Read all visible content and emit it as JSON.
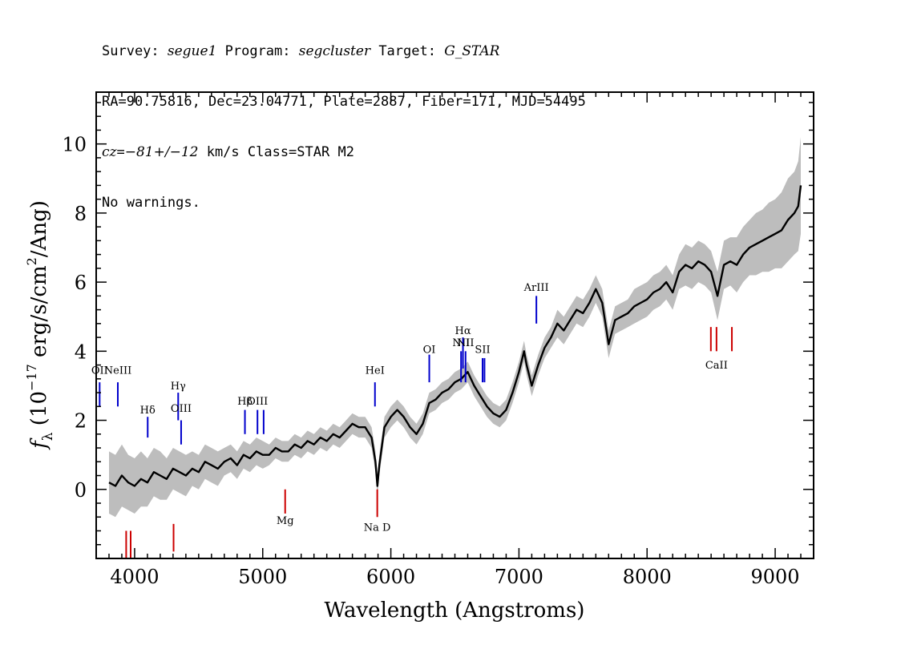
{
  "header": {
    "line1": {
      "p1": "Survey: ",
      "survey": "segue1",
      "p2": " Program: ",
      "program": "segcluster",
      "p3": " Target: ",
      "target": "G_STAR"
    },
    "line2": "RA=90.75816, Dec=23.04771, Plate=2887, Fiber=171, MJD=54495",
    "line3": {
      "cz": "cz",
      "p1": "=",
      "val": "−81+/−12",
      "p2": " km/s Class=STAR M2"
    },
    "line4": "No warnings."
  },
  "chart_data": {
    "type": "line",
    "xlabel": "Wavelength (Angstroms)",
    "ylabel_parts": {
      "f": "f",
      "sub": "λ",
      "pre": " (10",
      "exp1": "−17",
      "mid": " erg/s/cm",
      "exp2": "2",
      "post": "/Ang)"
    },
    "xlim": [
      3700,
      9300
    ],
    "ylim": [
      -2,
      11.5
    ],
    "xticks": [
      4000,
      5000,
      6000,
      7000,
      8000,
      9000
    ],
    "xtick_labels": [
      "4000",
      "5000",
      "6000",
      "7000",
      "8000",
      "9000"
    ],
    "yticks": [
      0,
      2,
      4,
      6,
      8,
      10
    ],
    "ytick_labels": [
      "0",
      "2",
      "4",
      "6",
      "8",
      "10"
    ],
    "colors": {
      "flux": "#000000",
      "error": "#bdbdbd",
      "emission": "#0000cc",
      "absorption": "#cc0000"
    },
    "series": [
      {
        "x": [
          3800,
          3850,
          3900,
          3950,
          4000,
          4050,
          4100,
          4150,
          4200,
          4250,
          4300,
          4350,
          4400,
          4450,
          4500,
          4550,
          4600,
          4650,
          4700,
          4750,
          4800,
          4850,
          4900,
          4950,
          5000,
          5050,
          5100,
          5150,
          5200,
          5250,
          5300,
          5350,
          5400,
          5450,
          5500,
          5550,
          5600,
          5650,
          5700,
          5750,
          5800,
          5850,
          5880,
          5895,
          5910,
          5950,
          6000,
          6050,
          6100,
          6150,
          6200,
          6250,
          6300,
          6350,
          6400,
          6450,
          6500,
          6550,
          6600,
          6650,
          6700,
          6750,
          6800,
          6850,
          6900,
          6950,
          7000,
          7040,
          7060,
          7100,
          7150,
          7200,
          7250,
          7300,
          7350,
          7400,
          7450,
          7500,
          7550,
          7600,
          7650,
          7700,
          7750,
          7800,
          7850,
          7900,
          7950,
          8000,
          8050,
          8100,
          8150,
          8200,
          8250,
          8300,
          8350,
          8400,
          8450,
          8500,
          8550,
          8600,
          8650,
          8700,
          8750,
          8800,
          8850,
          8900,
          8950,
          9000,
          9050,
          9100,
          9150,
          9180,
          9200
        ],
        "y": [
          0.2,
          0.1,
          0.4,
          0.2,
          0.1,
          0.3,
          0.2,
          0.5,
          0.4,
          0.3,
          0.6,
          0.5,
          0.4,
          0.6,
          0.5,
          0.8,
          0.7,
          0.6,
          0.8,
          0.9,
          0.7,
          1.0,
          0.9,
          1.1,
          1.0,
          1.0,
          1.2,
          1.1,
          1.1,
          1.3,
          1.2,
          1.4,
          1.3,
          1.5,
          1.4,
          1.6,
          1.5,
          1.7,
          1.9,
          1.8,
          1.8,
          1.5,
          0.8,
          0.1,
          0.7,
          1.8,
          2.1,
          2.3,
          2.1,
          1.8,
          1.6,
          1.9,
          2.5,
          2.6,
          2.8,
          2.9,
          3.1,
          3.2,
          3.4,
          3.0,
          2.7,
          2.4,
          2.2,
          2.1,
          2.3,
          2.8,
          3.4,
          4.0,
          3.6,
          3.0,
          3.6,
          4.1,
          4.4,
          4.8,
          4.6,
          4.9,
          5.2,
          5.1,
          5.4,
          5.8,
          5.4,
          4.2,
          4.9,
          5.0,
          5.1,
          5.3,
          5.4,
          5.5,
          5.7,
          5.8,
          6.0,
          5.7,
          6.3,
          6.5,
          6.4,
          6.6,
          6.5,
          6.3,
          5.6,
          6.5,
          6.6,
          6.5,
          6.8,
          7.0,
          7.1,
          7.2,
          7.3,
          7.4,
          7.5,
          7.8,
          8.0,
          8.2,
          8.8
        ],
        "err": [
          0.9,
          0.9,
          0.9,
          0.8,
          0.8,
          0.8,
          0.7,
          0.7,
          0.7,
          0.6,
          0.6,
          0.6,
          0.6,
          0.5,
          0.5,
          0.5,
          0.5,
          0.5,
          0.4,
          0.4,
          0.4,
          0.4,
          0.4,
          0.4,
          0.4,
          0.3,
          0.3,
          0.3,
          0.3,
          0.3,
          0.3,
          0.3,
          0.3,
          0.3,
          0.3,
          0.3,
          0.3,
          0.3,
          0.3,
          0.3,
          0.3,
          0.3,
          0.3,
          0.3,
          0.3,
          0.3,
          0.3,
          0.3,
          0.3,
          0.3,
          0.3,
          0.3,
          0.3,
          0.3,
          0.3,
          0.3,
          0.3,
          0.3,
          0.3,
          0.3,
          0.3,
          0.3,
          0.3,
          0.3,
          0.3,
          0.3,
          0.3,
          0.3,
          0.3,
          0.3,
          0.3,
          0.3,
          0.3,
          0.4,
          0.4,
          0.4,
          0.4,
          0.4,
          0.4,
          0.4,
          0.4,
          0.4,
          0.4,
          0.4,
          0.4,
          0.5,
          0.5,
          0.5,
          0.5,
          0.5,
          0.5,
          0.5,
          0.5,
          0.6,
          0.6,
          0.6,
          0.6,
          0.6,
          0.7,
          0.7,
          0.7,
          0.8,
          0.8,
          0.8,
          0.9,
          0.9,
          1.0,
          1.0,
          1.1,
          1.2,
          1.2,
          1.3,
          1.4
        ]
      }
    ],
    "lines": [
      {
        "label": "OII",
        "wave": 3727,
        "kind": "emission",
        "y0": 2.4,
        "y1": 3.1,
        "label_y": 3.35
      },
      {
        "label": "NeIII",
        "wave": 3869,
        "kind": "emission",
        "y0": 2.4,
        "y1": 3.1,
        "label_y": 3.35
      },
      {
        "label": "Hδ",
        "wave": 4102,
        "kind": "emission",
        "y0": 1.5,
        "y1": 2.1,
        "label_y": 2.2
      },
      {
        "label": "Hγ",
        "wave": 4340,
        "kind": "emission",
        "y0": 2.0,
        "y1": 2.8,
        "label_y": 2.9
      },
      {
        "label": "OIII",
        "wave": 4363,
        "kind": "emission",
        "y0": 1.3,
        "y1": 2.0,
        "label_y": 2.25
      },
      {
        "label": "Hβ",
        "wave": 4861,
        "kind": "emission",
        "y0": 1.6,
        "y1": 2.3,
        "label_y": 2.45
      },
      {
        "label": "OIII",
        "wave": 4959,
        "kind": "emission",
        "y0": 1.6,
        "y1": 2.3,
        "label_y": 2.45
      },
      {
        "label": "",
        "wave": 5007,
        "kind": "emission",
        "y0": 1.6,
        "y1": 2.3,
        "label_y": 2.45
      },
      {
        "label": "HeI",
        "wave": 5876,
        "kind": "emission",
        "y0": 2.4,
        "y1": 3.1,
        "label_y": 3.35
      },
      {
        "label": "OI",
        "wave": 6300,
        "kind": "emission",
        "y0": 3.1,
        "y1": 3.9,
        "label_y": 3.95
      },
      {
        "label": "NII",
        "wave": 6548,
        "kind": "emission",
        "y0": 3.1,
        "y1": 4.0,
        "label_y": 4.15
      },
      {
        "label": "Hα",
        "wave": 6563,
        "kind": "emission",
        "y0": 3.5,
        "y1": 4.4,
        "label_y": 4.5
      },
      {
        "label": "NII",
        "wave": 6583,
        "kind": "emission",
        "y0": 3.1,
        "y1": 4.0,
        "label_y": 4.15
      },
      {
        "label": "SII",
        "wave": 6716,
        "kind": "emission",
        "y0": 3.1,
        "y1": 3.8,
        "label_y": 3.95
      },
      {
        "label": "",
        "wave": 6731,
        "kind": "emission",
        "y0": 3.1,
        "y1": 3.8,
        "label_y": 3.95
      },
      {
        "label": "ArIII",
        "wave": 7136,
        "kind": "emission",
        "y0": 4.8,
        "y1": 5.6,
        "label_y": 5.75
      },
      {
        "label": "",
        "wave": 3934,
        "kind": "absorption",
        "y0": -2.0,
        "y1": -1.2,
        "label_y": -2.4
      },
      {
        "label": "",
        "wave": 3969,
        "kind": "absorption",
        "y0": -2.0,
        "y1": -1.2,
        "label_y": -2.4
      },
      {
        "label": "",
        "wave": 4304,
        "kind": "absorption",
        "y0": -1.8,
        "y1": -1.0,
        "label_y": -2.2
      },
      {
        "label": "Mg",
        "wave": 5175,
        "kind": "absorption",
        "y0": -0.7,
        "y1": 0.0,
        "label_y": -1.0
      },
      {
        "label": "Na D",
        "wave": 5894,
        "kind": "absorption",
        "y0": -0.8,
        "y1": 0.0,
        "label_y": -1.2
      },
      {
        "label": "",
        "wave": 8498,
        "kind": "absorption",
        "y0": 4.0,
        "y1": 4.7,
        "label_y": 3.5
      },
      {
        "label": "CaII",
        "wave": 8542,
        "kind": "absorption",
        "y0": 4.0,
        "y1": 4.7,
        "label_y": 3.5
      },
      {
        "label": "",
        "wave": 8662,
        "kind": "absorption",
        "y0": 4.0,
        "y1": 4.7,
        "label_y": 3.5
      }
    ]
  }
}
